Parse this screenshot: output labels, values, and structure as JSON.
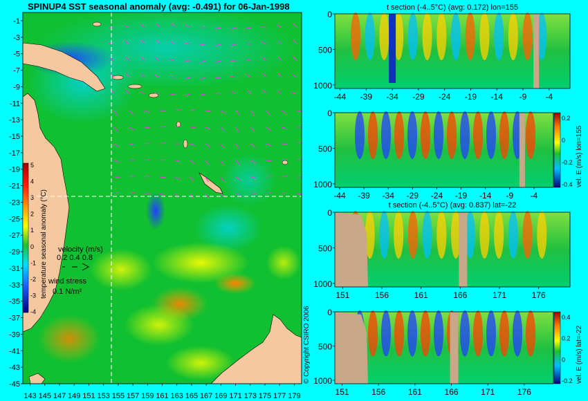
{
  "title": "SPINUP4 SST seasonal anomaly (avg: -0.491) for 06-Jan-1998",
  "map": {
    "lat_ticks": [
      -1,
      -3,
      -5,
      -7,
      -9,
      -11,
      -13,
      -15,
      -17,
      -19,
      -21,
      -23,
      -25,
      -27,
      -29,
      -31,
      -33,
      -35,
      -37,
      -39,
      -41,
      -43,
      -45
    ],
    "lon_ticks": [
      "143",
      "145",
      "147",
      "149",
      "151",
      "153",
      "155",
      "157",
      "159",
      "161",
      "163",
      "165",
      "167",
      "169",
      "171",
      "173",
      "175",
      "177",
      "179"
    ],
    "lon_range": [
      142,
      180
    ],
    "lat_range": [
      0,
      -45
    ],
    "section_lon": 155,
    "section_lat": -22,
    "colorbar_label": "temperature seasonal anomaly (°C)",
    "colorbar_ticks": [
      "5",
      "4",
      "3",
      "2",
      "1",
      "0",
      "-1",
      "-2",
      "-3",
      "-4"
    ],
    "velocity_label": "velocity (m/s)",
    "velocity_scale": "0.2 0.4 0.8",
    "wind_label": "wind stress",
    "wind_scale": "0.1 N/m²",
    "copyright": "© Copyright CSIRO 2006",
    "colors": {
      "land": "#f5c8a0",
      "sea_base": "#00c020",
      "arrows": "#ff30ff"
    }
  },
  "chart_data": [
    {
      "type": "heatmap",
      "title": "t section (-4..5°C) (avg: 0.172) lon=155",
      "x_ticks": [
        "-44",
        "-39",
        "-34",
        "-29",
        "-24",
        "-19",
        "-14",
        "-9",
        "-4"
      ],
      "y_ticks": [
        "0",
        "500",
        "1000"
      ],
      "xlim": [
        -45,
        0
      ],
      "ylim": [
        0,
        1050
      ]
    },
    {
      "type": "heatmap",
      "title": "",
      "x_ticks": [
        "-44",
        "-39",
        "-34",
        "-29",
        "-24",
        "-19",
        "-14",
        "-9",
        "-4"
      ],
      "y_ticks": [
        "0",
        "500",
        "1000"
      ],
      "colorbar_label": "vel. E (m/s) lon=155",
      "colorbar_ticks": [
        "0.2",
        "0",
        "-0.2",
        "-0.4"
      ],
      "xlim": [
        -45,
        0
      ],
      "ylim": [
        0,
        1050
      ]
    },
    {
      "type": "heatmap",
      "title": "t section (-4..5°C) (avg: 0.837) lat=-22",
      "x_ticks": [
        "151",
        "156",
        "161",
        "166",
        "171",
        "176"
      ],
      "y_ticks": [
        "0",
        "500",
        "1000"
      ],
      "xlim": [
        150,
        180
      ],
      "ylim": [
        0,
        1050
      ]
    },
    {
      "type": "heatmap",
      "title": "",
      "x_ticks": [
        "151",
        "156",
        "161",
        "166",
        "171",
        "176"
      ],
      "y_ticks": [
        "0",
        "500",
        "1000"
      ],
      "colorbar_label": "vel. E (m/s) lat=-22",
      "colorbar_ticks": [
        "0.4",
        "0.2",
        "0",
        "-0.2"
      ],
      "xlim": [
        150,
        180
      ],
      "ylim": [
        0,
        1050
      ]
    }
  ]
}
